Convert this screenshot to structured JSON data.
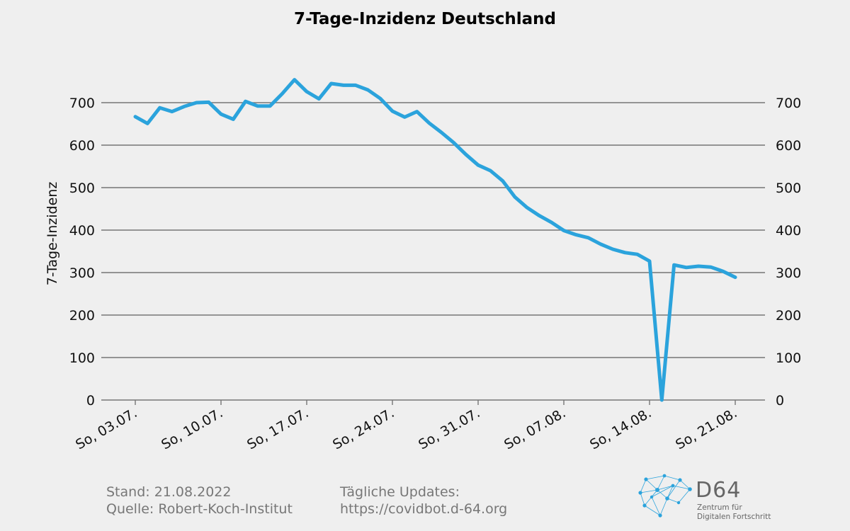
{
  "chart_data": {
    "type": "line",
    "title": "7-Tage-Inzidenz Deutschland",
    "ylabel": "7-Tage-Inzidenz",
    "xlabel": "",
    "ylim": [
      0,
      800
    ],
    "yticks": [
      0,
      100,
      200,
      300,
      400,
      500,
      600,
      700
    ],
    "grid": true,
    "y_axis_labels_both_sides": true,
    "line_color": "#2ba3dc",
    "x_tick_labels": [
      "So, 03.07.",
      "So, 10.07.",
      "So, 17.07.",
      "So, 24.07.",
      "So, 31.07.",
      "So, 07.08.",
      "So, 14.08.",
      "So, 21.08."
    ],
    "x_tick_dates": [
      "2022-07-03",
      "2022-07-10",
      "2022-07-17",
      "2022-07-24",
      "2022-07-31",
      "2022-08-07",
      "2022-08-14",
      "2022-08-21"
    ],
    "series": [
      {
        "x": [
          "2022-07-03",
          "2022-07-04",
          "2022-07-05",
          "2022-07-06",
          "2022-07-07",
          "2022-07-08",
          "2022-07-09",
          "2022-07-10",
          "2022-07-11",
          "2022-07-12",
          "2022-07-13",
          "2022-07-14",
          "2022-07-15",
          "2022-07-16",
          "2022-07-17",
          "2022-07-18",
          "2022-07-19",
          "2022-07-20",
          "2022-07-21",
          "2022-07-22",
          "2022-07-23",
          "2022-07-24",
          "2022-07-25",
          "2022-07-26",
          "2022-07-27",
          "2022-07-28",
          "2022-07-29",
          "2022-07-30",
          "2022-07-31",
          "2022-08-01",
          "2022-08-02",
          "2022-08-03",
          "2022-08-04",
          "2022-08-05",
          "2022-08-06",
          "2022-08-07",
          "2022-08-08",
          "2022-08-09",
          "2022-08-10",
          "2022-08-11",
          "2022-08-12",
          "2022-08-13",
          "2022-08-14",
          "2022-08-15",
          "2022-08-16",
          "2022-08-17",
          "2022-08-18",
          "2022-08-19",
          "2022-08-20",
          "2022-08-21"
        ],
        "values": [
          667,
          651,
          688,
          679,
          691,
          700,
          701,
          673,
          661,
          703,
          692,
          692,
          721,
          754,
          726,
          709,
          745,
          741,
          741,
          730,
          710,
          680,
          666,
          679,
          652,
          630,
          606,
          578,
          553,
          540,
          516,
          478,
          453,
          434,
          418,
          399,
          389,
          382,
          367,
          355,
          347,
          343,
          327,
          0,
          318,
          312,
          315,
          313,
          303,
          289
        ]
      }
    ]
  },
  "footer": {
    "stand": "Stand: 21.08.2022",
    "quelle": "Quelle: Robert-Koch-Institut",
    "updates_label": "Tägliche Updates:",
    "updates_url": "https://covidbot.d-64.org"
  },
  "logo": {
    "name": "D64",
    "subtitle_line1": "Zentrum für",
    "subtitle_line2": "Digitalen Fortschritt",
    "icon": "network-graph-icon"
  }
}
